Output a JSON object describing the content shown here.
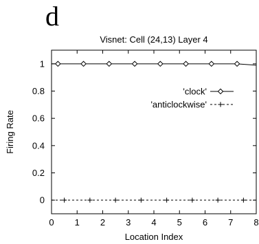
{
  "panel_label": "d",
  "chart_data": {
    "type": "line",
    "title": "Visnet: Cell (24,13) Layer 4",
    "xlabel": "Location Index",
    "ylabel": "Firing Rate",
    "xlim": [
      0,
      8
    ],
    "ylim": [
      -0.1,
      1.1
    ],
    "xticks": [
      "0",
      "1",
      "2",
      "3",
      "4",
      "5",
      "6",
      "7",
      "8"
    ],
    "yticks": [
      "0",
      "0.2",
      "0.4",
      "0.6",
      "0.8",
      "1"
    ],
    "grid": false,
    "legend_position": "top-right",
    "series": [
      {
        "name": "'clock'",
        "marker": "diamond",
        "line": "solid",
        "x": [
          0,
          0.25,
          1.25,
          2.25,
          3.25,
          4.25,
          5.25,
          6.25,
          7.25,
          8
        ],
        "y": [
          1,
          1,
          1,
          1,
          1,
          1,
          1,
          1,
          1,
          0.99
        ],
        "marker_x": [
          0.25,
          1.25,
          2.25,
          3.25,
          4.25,
          5.25,
          6.25,
          7.25
        ]
      },
      {
        "name": "'anticlockwise'",
        "marker": "plus",
        "line": "dashed",
        "x": [
          0,
          0.5,
          1.5,
          2.5,
          3.5,
          4.5,
          5.5,
          6.5,
          7.5,
          8
        ],
        "y": [
          0,
          0,
          0,
          0,
          0,
          0,
          0,
          0,
          0,
          0
        ],
        "marker_x": [
          0.5,
          1.5,
          2.5,
          3.5,
          4.5,
          5.5,
          6.5,
          7.5
        ]
      }
    ]
  }
}
